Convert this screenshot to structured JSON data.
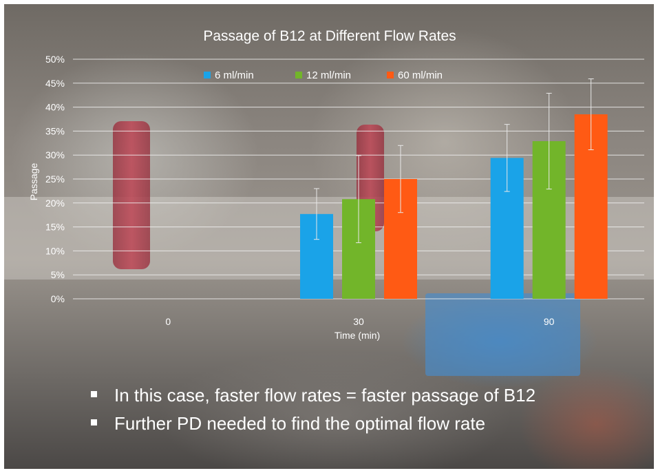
{
  "colors": {
    "series_1": "#1aa3e8",
    "series_2": "#72b52a",
    "series_3": "#ff5a14",
    "gridline": "#f2f2f2",
    "text": "#ffffff",
    "error_bar": "#e8e8e8"
  },
  "chart_data": {
    "type": "bar",
    "title": "Passage of B12 at Different Flow Rates",
    "xlabel": "Time (min)",
    "ylabel": "Passage",
    "categories": [
      "0",
      "30",
      "90"
    ],
    "ylim": [
      0,
      50
    ],
    "y_ticks": [
      0,
      5,
      10,
      15,
      20,
      25,
      30,
      35,
      40,
      45,
      50
    ],
    "y_tick_suffix": "%",
    "grid": true,
    "legend_position": "top-center",
    "series": [
      {
        "name": "6 ml/min",
        "values": [
          0,
          17.7,
          29.4
        ],
        "error": [
          0,
          5.3,
          7.0
        ]
      },
      {
        "name": "12 ml/min",
        "values": [
          0,
          20.8,
          32.9
        ],
        "error": [
          0,
          9.1,
          10.0
        ]
      },
      {
        "name": "60 ml/min",
        "values": [
          0,
          25.0,
          38.5
        ],
        "error": [
          0,
          7.0,
          7.4
        ]
      }
    ]
  },
  "bullets": [
    "In this case, faster flow rates = faster passage of B12",
    "Further PD needed to find the optimal flow rate"
  ]
}
